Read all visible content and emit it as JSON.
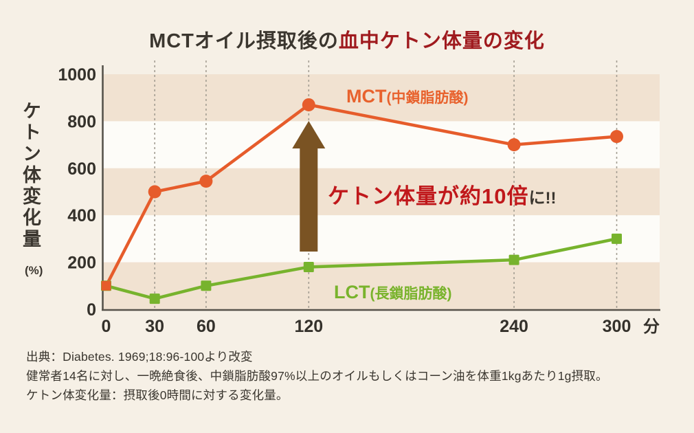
{
  "title": {
    "prefix": "MCTオイル摂取後の",
    "highlight": "血中ケトン体量の変化"
  },
  "y_axis": {
    "label": "ケトン体変化量",
    "unit": "(%)",
    "ticks": [
      0,
      200,
      400,
      600,
      800,
      1000
    ],
    "max": 1000
  },
  "x_axis": {
    "ticks": [
      0,
      30,
      60,
      120,
      240,
      300
    ],
    "unit": "分",
    "max": 300
  },
  "series_labels": {
    "mct": {
      "name": "MCT",
      "desc": "(中鎖脂肪酸)"
    },
    "lct": {
      "name": "LCT",
      "desc": "(長鎖脂肪酸)"
    }
  },
  "annotation": {
    "highlight": "ケトン体量が約10倍",
    "suffix": "に!!"
  },
  "footer": {
    "lines": [
      "出典：Diabetes. 1969;18:96-100より改変",
      "健常者14名に対し、一晩絶食後、中鎖脂肪酸97%以上のオイルもしくはコーン油を体重1kgあたり1g摂取。",
      "ケトン体変化量：摂取後0時間に対する変化量。"
    ]
  },
  "colors": {
    "page_bg": "#f6f0e6",
    "band_beige": "#f1e2d1",
    "band_white": "#fdfcf8",
    "grid_gray": "#a39d92",
    "axis_gray": "#57534b",
    "tick_text": "#34312b",
    "mct_orange": "#e65c2b",
    "lct_green": "#77b32d",
    "arrow_brown": "#7a5323",
    "annotation_red": "#c0181b",
    "title_red": "#9f1a1e",
    "text_dark": "#3b362f"
  },
  "chart_data": {
    "type": "line",
    "title": "MCTオイル摂取後の血中ケトン体量の変化",
    "x": [
      0,
      30,
      60,
      120,
      240,
      300
    ],
    "xlabel": "分",
    "ylabel": "ケトン体変化量(%)",
    "ylim": [
      0,
      1000
    ],
    "xlim": [
      0,
      300
    ],
    "grid": "dashed vertical lines at each x tick",
    "background_bands": "horizontal stripes alternating beige/white every 200 units (beige: 0-200, 400-600, 800-1000)",
    "legend_position": "inline labels next to lines",
    "series": [
      {
        "name": "MCT(中鎖脂肪酸)",
        "marker": "circle",
        "color": "#e65c2b",
        "values": [
          100,
          500,
          545,
          870,
          700,
          735
        ]
      },
      {
        "name": "LCT(長鎖脂肪酸)",
        "marker": "square",
        "color": "#77b32d",
        "values": [
          100,
          45,
          100,
          180,
          210,
          300
        ]
      }
    ],
    "annotations": [
      {
        "text": "ケトン体量が約10倍に!!",
        "type": "upward brown arrow at x=120 pointing to MCT peak"
      }
    ]
  }
}
